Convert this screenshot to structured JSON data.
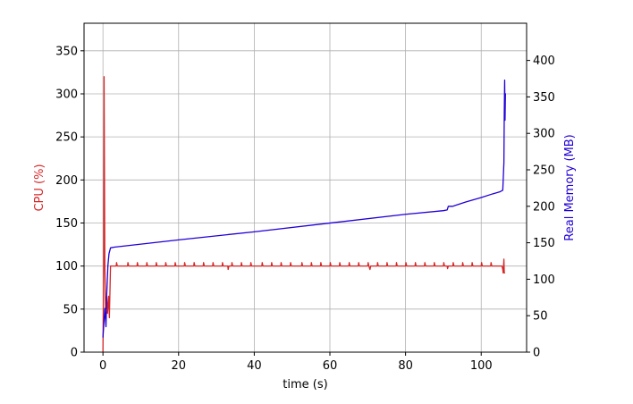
{
  "chart_data": {
    "type": "line",
    "title": "",
    "xlabel": "time (s)",
    "ylabel_left": "CPU (%)",
    "ylabel_right": "Real Memory (MB)",
    "xlim": [
      -5,
      112
    ],
    "ylim_left": [
      0,
      382
    ],
    "ylim_right": [
      0,
      451
    ],
    "x_ticks": [
      0,
      20,
      40,
      60,
      80,
      100
    ],
    "y_left_ticks": [
      0,
      50,
      100,
      150,
      200,
      250,
      300,
      350
    ],
    "y_right_ticks": [
      0,
      50,
      100,
      150,
      200,
      250,
      300,
      350,
      400
    ],
    "grid": true,
    "colors": {
      "cpu": "#d62728",
      "memory": "#1f00d6",
      "grid": "#b0b0b0"
    },
    "series": [
      {
        "axis": "left",
        "color": "#d62728",
        "points": [
          [
            0,
            0
          ],
          [
            0.2,
            100
          ],
          [
            0.3,
            320
          ],
          [
            0.5,
            100
          ],
          [
            0.7,
            50
          ],
          [
            1.0,
            65
          ],
          [
            1.2,
            45
          ],
          [
            1.5,
            65
          ],
          [
            1.7,
            40
          ],
          [
            2.0,
            100
          ],
          [
            3.0,
            100
          ],
          [
            3.5,
            100
          ],
          [
            3.6,
            104
          ],
          [
            3.8,
            100
          ],
          [
            6.5,
            100
          ],
          [
            6.6,
            104
          ],
          [
            6.8,
            100
          ],
          [
            9.0,
            100
          ],
          [
            9.1,
            104
          ],
          [
            9.3,
            100
          ],
          [
            11.5,
            100
          ],
          [
            11.6,
            104
          ],
          [
            11.8,
            100
          ],
          [
            14.0,
            100
          ],
          [
            14.1,
            104
          ],
          [
            14.3,
            100
          ],
          [
            16.5,
            100
          ],
          [
            16.6,
            104
          ],
          [
            16.8,
            100
          ],
          [
            19.0,
            100
          ],
          [
            19.1,
            104
          ],
          [
            19.3,
            100
          ],
          [
            21.5,
            100
          ],
          [
            21.6,
            104
          ],
          [
            21.8,
            100
          ],
          [
            24.0,
            100
          ],
          [
            24.1,
            104
          ],
          [
            24.3,
            100
          ],
          [
            26.5,
            100
          ],
          [
            26.6,
            104
          ],
          [
            26.8,
            100
          ],
          [
            29.0,
            100
          ],
          [
            29.1,
            104
          ],
          [
            29.3,
            100
          ],
          [
            31.5,
            100
          ],
          [
            31.6,
            104
          ],
          [
            31.8,
            100
          ],
          [
            33.0,
            100
          ],
          [
            33.1,
            96
          ],
          [
            33.3,
            100
          ],
          [
            34.0,
            100
          ],
          [
            34.1,
            104
          ],
          [
            34.3,
            100
          ],
          [
            36.5,
            100
          ],
          [
            36.6,
            104
          ],
          [
            36.8,
            100
          ],
          [
            39.0,
            100
          ],
          [
            39.1,
            104
          ],
          [
            39.3,
            100
          ],
          [
            42.0,
            100
          ],
          [
            42.1,
            104
          ],
          [
            42.3,
            100
          ],
          [
            44.5,
            100
          ],
          [
            44.6,
            104
          ],
          [
            44.8,
            100
          ],
          [
            47.0,
            100
          ],
          [
            47.1,
            104
          ],
          [
            47.3,
            100
          ],
          [
            49.5,
            100
          ],
          [
            49.6,
            104
          ],
          [
            49.8,
            100
          ],
          [
            52.5,
            100
          ],
          [
            52.6,
            104
          ],
          [
            52.8,
            100
          ],
          [
            55.0,
            100
          ],
          [
            55.1,
            104
          ],
          [
            55.3,
            100
          ],
          [
            57.5,
            100
          ],
          [
            57.6,
            104
          ],
          [
            57.8,
            100
          ],
          [
            60.0,
            100
          ],
          [
            60.1,
            104
          ],
          [
            60.3,
            100
          ],
          [
            62.5,
            100
          ],
          [
            62.6,
            104
          ],
          [
            62.8,
            100
          ],
          [
            65.0,
            100
          ],
          [
            65.1,
            104
          ],
          [
            65.3,
            100
          ],
          [
            67.5,
            100
          ],
          [
            67.6,
            104
          ],
          [
            67.8,
            100
          ],
          [
            70.0,
            100
          ],
          [
            70.1,
            104
          ],
          [
            70.3,
            100
          ],
          [
            70.6,
            96
          ],
          [
            70.8,
            100
          ],
          [
            72.5,
            100
          ],
          [
            72.6,
            104
          ],
          [
            72.8,
            100
          ],
          [
            75.0,
            100
          ],
          [
            75.1,
            104
          ],
          [
            75.3,
            100
          ],
          [
            77.5,
            100
          ],
          [
            77.6,
            104
          ],
          [
            77.8,
            100
          ],
          [
            80.0,
            100
          ],
          [
            80.1,
            104
          ],
          [
            80.3,
            100
          ],
          [
            82.5,
            100
          ],
          [
            82.6,
            104
          ],
          [
            82.8,
            100
          ],
          [
            85.0,
            100
          ],
          [
            85.1,
            104
          ],
          [
            85.3,
            100
          ],
          [
            87.5,
            100
          ],
          [
            87.6,
            104
          ],
          [
            87.8,
            100
          ],
          [
            90.0,
            100
          ],
          [
            90.1,
            104
          ],
          [
            90.3,
            100
          ],
          [
            91.0,
            100
          ],
          [
            91.1,
            97
          ],
          [
            91.3,
            100
          ],
          [
            92.5,
            100
          ],
          [
            92.6,
            104
          ],
          [
            92.8,
            100
          ],
          [
            95.0,
            100
          ],
          [
            95.1,
            104
          ],
          [
            95.3,
            100
          ],
          [
            97.5,
            100
          ],
          [
            97.6,
            104
          ],
          [
            97.8,
            100
          ],
          [
            100.0,
            100
          ],
          [
            100.1,
            104
          ],
          [
            100.3,
            100
          ],
          [
            102.5,
            100
          ],
          [
            102.6,
            104
          ],
          [
            102.8,
            100
          ],
          [
            105.5,
            100
          ],
          [
            105.7,
            96
          ],
          [
            105.8,
            92
          ],
          [
            106.0,
            108
          ],
          [
            106.1,
            92
          ],
          [
            106.3,
            92
          ]
        ]
      },
      {
        "axis": "right",
        "color": "#1f00d6",
        "points": [
          [
            0,
            20
          ],
          [
            0.5,
            60
          ],
          [
            0.8,
            35
          ],
          [
            1.0,
            80
          ],
          [
            1.3,
            118
          ],
          [
            1.6,
            135
          ],
          [
            2.0,
            143
          ],
          [
            3.0,
            144
          ],
          [
            20.0,
            154
          ],
          [
            40.0,
            165
          ],
          [
            60.0,
            177
          ],
          [
            80.0,
            189
          ],
          [
            90.0,
            194
          ],
          [
            91.0,
            195
          ],
          [
            91.3,
            200
          ],
          [
            92.5,
            200
          ],
          [
            93.0,
            201
          ],
          [
            96.0,
            206
          ],
          [
            100.0,
            212
          ],
          [
            103.0,
            217
          ],
          [
            105.0,
            220
          ],
          [
            105.7,
            222
          ],
          [
            106.0,
            260
          ],
          [
            106.1,
            330
          ],
          [
            106.2,
            373
          ],
          [
            106.3,
            318
          ],
          [
            106.4,
            355
          ]
        ]
      }
    ]
  }
}
